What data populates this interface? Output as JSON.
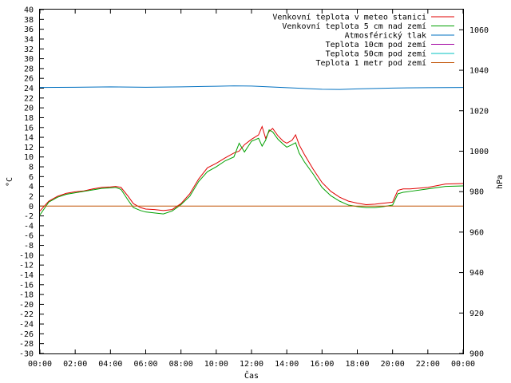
{
  "chart_data": {
    "type": "line",
    "xlabel": "Čas",
    "ylabel_left": "°C",
    "ylabel_right": "hPa",
    "ylim_left": [
      -30,
      40
    ],
    "ylim_right": [
      900,
      1070
    ],
    "x_ticks": [
      "00:00",
      "02:00",
      "04:00",
      "06:00",
      "08:00",
      "10:00",
      "12:00",
      "14:00",
      "16:00",
      "18:00",
      "20:00",
      "22:00",
      "00:00"
    ],
    "y_ticks_left": [
      40,
      38,
      36,
      34,
      32,
      30,
      28,
      26,
      24,
      22,
      20,
      18,
      16,
      14,
      12,
      10,
      8,
      6,
      4,
      2,
      0,
      -2,
      -4,
      -6,
      -8,
      -10,
      -12,
      -14,
      -16,
      -18,
      -20,
      -22,
      -24,
      -26,
      -28,
      -30
    ],
    "y_ticks_right": [
      1060,
      1040,
      1020,
      1000,
      980,
      960,
      940,
      920,
      900
    ],
    "grid": false,
    "legend_position": "top-right",
    "series": [
      {
        "name": "Venkovní teplota v meteo stanici",
        "color": "#e00000",
        "axis": "left",
        "x": [
          0,
          0.5,
          1,
          1.5,
          2,
          2.5,
          3,
          3.5,
          4,
          4.3,
          4.6,
          5,
          5.3,
          5.7,
          6,
          6.5,
          7,
          7.5,
          8,
          8.5,
          9,
          9.5,
          10,
          10.5,
          11,
          11.3,
          11.6,
          12,
          12.4,
          12.6,
          12.8,
          13,
          13.2,
          13.5,
          13.8,
          14,
          14.3,
          14.5,
          14.7,
          15,
          15.5,
          16,
          16.5,
          17,
          17.5,
          18,
          18.5,
          19,
          19.5,
          20,
          20.3,
          20.6,
          21,
          22,
          23,
          24
        ],
        "y": [
          -1,
          1,
          2,
          2.6,
          2.9,
          3.1,
          3.5,
          3.8,
          3.9,
          4,
          3.8,
          2,
          0.5,
          -0.3,
          -0.6,
          -0.7,
          -0.9,
          -0.7,
          0.5,
          2.5,
          5.5,
          7.8,
          8.7,
          9.8,
          10.8,
          11.2,
          12.5,
          13.6,
          14.5,
          16.2,
          13.8,
          15.2,
          15.8,
          14.3,
          13.2,
          12.8,
          13.4,
          14.5,
          12.5,
          10.5,
          7.5,
          4.8,
          3,
          1.8,
          1,
          0.6,
          0.3,
          0.4,
          0.6,
          0.8,
          3.2,
          3.5,
          3.5,
          3.8,
          4.5,
          4.6
        ]
      },
      {
        "name": "Venkovní teplota 5 cm nad zemí",
        "color": "#00a000",
        "axis": "left",
        "x": [
          0,
          0.5,
          1,
          1.5,
          2,
          2.5,
          3,
          3.5,
          4,
          4.3,
          4.6,
          5,
          5.3,
          5.7,
          6,
          6.5,
          7,
          7.5,
          8,
          8.5,
          9,
          9.5,
          10,
          10.5,
          11,
          11.3,
          11.6,
          12,
          12.4,
          12.6,
          12.8,
          13,
          13.2,
          13.5,
          13.8,
          14,
          14.3,
          14.5,
          14.7,
          15,
          15.5,
          16,
          16.5,
          17,
          17.5,
          18,
          18.5,
          19,
          19.5,
          20,
          20.3,
          20.6,
          21,
          22,
          23,
          24
        ],
        "y": [
          -1.8,
          0.8,
          1.8,
          2.4,
          2.7,
          3,
          3.3,
          3.6,
          3.7,
          3.8,
          3.4,
          1.2,
          -0.3,
          -0.9,
          -1.2,
          -1.4,
          -1.6,
          -1,
          0.3,
          2,
          5,
          7,
          8,
          9.2,
          10,
          12.8,
          11,
          13.2,
          13.8,
          12.2,
          13.4,
          15.5,
          15.1,
          13.6,
          12.6,
          12,
          12.5,
          12.9,
          10.8,
          9,
          6.5,
          3.8,
          2.1,
          1,
          0.2,
          -0.1,
          -0.3,
          -0.3,
          -0.1,
          0.2,
          2.5,
          2.8,
          3,
          3.5,
          4,
          4.1
        ]
      },
      {
        "name": "Atmosférický tlak",
        "color": "#0070c0",
        "axis": "right",
        "x": [
          0,
          2,
          4,
          6,
          8,
          10,
          11,
          12,
          14,
          16,
          17,
          18,
          20,
          22,
          24
        ],
        "y": [
          1031.5,
          1031.6,
          1031.8,
          1031.6,
          1031.8,
          1032.1,
          1032.3,
          1032.2,
          1031.4,
          1030.6,
          1030.5,
          1030.8,
          1031.2,
          1031.4,
          1031.5
        ]
      },
      {
        "name": "Teplota 10cm pod zemí",
        "color": "#a000a0",
        "axis": "left",
        "x": [],
        "y": []
      },
      {
        "name": "Teplota 50cm pod zemí",
        "color": "#00c0c0",
        "axis": "left",
        "x": [],
        "y": []
      },
      {
        "name": "Teplota 1 metr pod zemí",
        "color": "#c05000",
        "axis": "left",
        "x": [
          0,
          24
        ],
        "y": [
          0,
          0
        ]
      }
    ]
  }
}
